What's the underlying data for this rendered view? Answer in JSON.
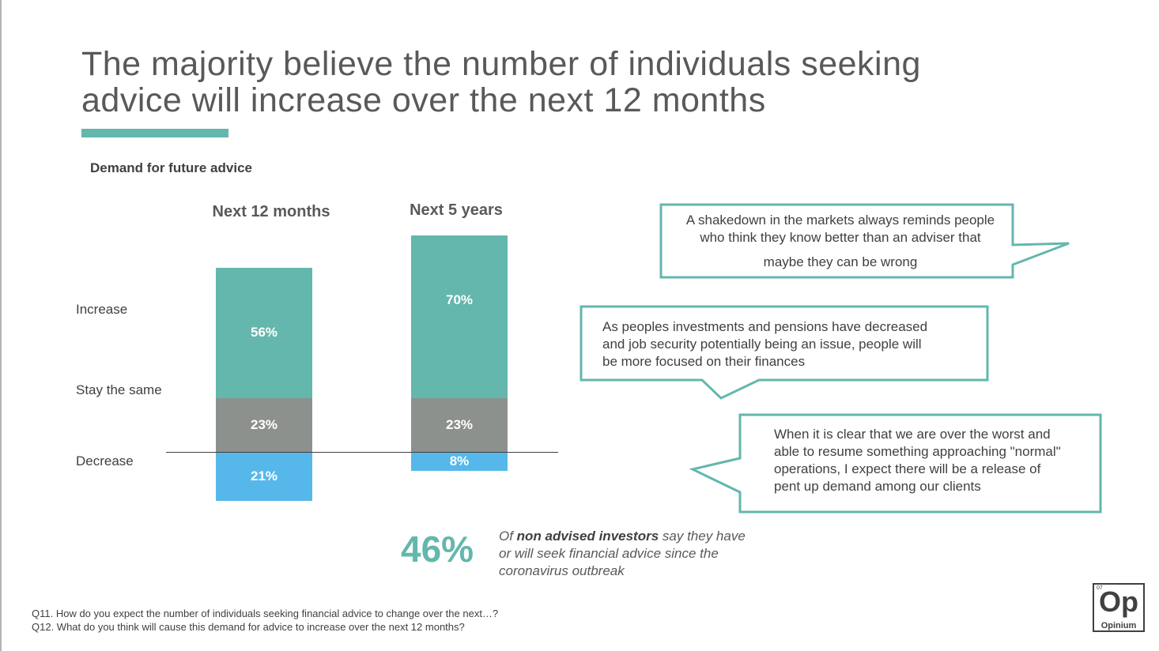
{
  "title": "The majority believe the number of individuals seeking advice will increase over the next 12 months",
  "colors": {
    "increase": "#63b7ad",
    "same": "#8c918d",
    "decrease": "#56b8ea",
    "accent": "#63b7ad"
  },
  "chart_data": {
    "type": "bar",
    "stacked": true,
    "title": "Demand for future advice",
    "categories": [
      "Next 12 months",
      "Next 5 years"
    ],
    "series": [
      {
        "name": "Increase",
        "values": [
          56,
          70
        ],
        "labels": [
          "56%",
          "70%"
        ]
      },
      {
        "name": "Stay the same",
        "values": [
          23,
          23
        ],
        "labels": [
          "23%",
          "23%"
        ]
      },
      {
        "name": "Decrease",
        "values": [
          21,
          8
        ],
        "labels": [
          "21%",
          "8%"
        ]
      }
    ],
    "ylabel": "%",
    "ylim": [
      0,
      100
    ]
  },
  "quotes": [
    {
      "lines": [
        "A shakedown in the markets always reminds people",
        "who think they know better than an adviser that",
        "maybe they can be wrong"
      ]
    },
    {
      "lines": [
        "As peoples investments and pensions have decreased",
        "and job security potentially being an issue, people will",
        "be more focused on their finances"
      ]
    },
    {
      "lines": [
        "When it is clear that we are over the worst  and",
        "able to resume something approaching \"normal\"",
        "operations, I expect there will be a release of",
        "pent up demand among our clients"
      ]
    }
  ],
  "stat": {
    "number": "46%",
    "text_prefix": "Of ",
    "text_bold": "non advised investors",
    "text_suffix": " say they have or will seek financial advice since the coronavirus outbreak"
  },
  "footnotes": [
    "Q11. How do you expect the number of individuals seeking financial advice to change over the next…?",
    "Q12. What do you think will cause this demand for advice to increase over the next 12 months?"
  ],
  "logo": {
    "page_number": "07",
    "mark": "Op",
    "name": "Opinium"
  }
}
